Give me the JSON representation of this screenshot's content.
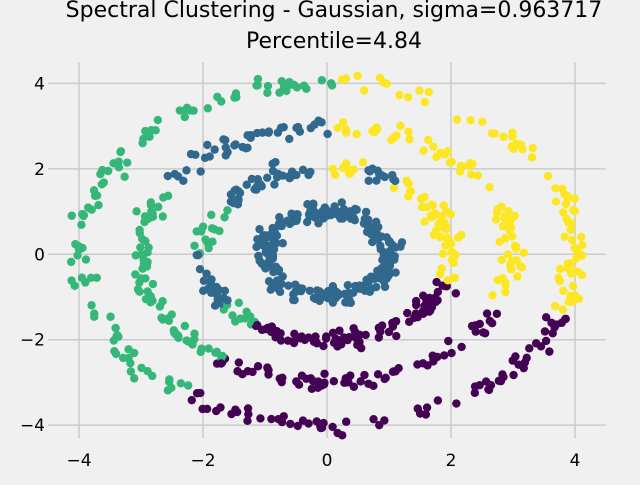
{
  "chart_data": {
    "type": "scatter",
    "title": "Spectral Clustering - Gaussian, sigma=0.963717",
    "subtitle": "Percentile=4.84",
    "xlabel": "",
    "ylabel": "",
    "xlim": [
      -4.5,
      4.5
    ],
    "ylim": [
      -4.3,
      4.5
    ],
    "xticks": [
      -4,
      -2,
      0,
      2,
      4
    ],
    "yticks": [
      -4,
      -2,
      0,
      2,
      4
    ],
    "xtick_labels": [
      "−4",
      "−2",
      "0",
      "2",
      "4"
    ],
    "ytick_labels": [
      "−4",
      "−2",
      "0",
      "2",
      "4"
    ],
    "grid": true,
    "legend": "none",
    "description": "1000 points on four noisy concentric rings (radii approx. 1, 2, 3, 4) colored by cluster",
    "rings": [
      {
        "radius": 1.0,
        "noise": 0.1,
        "points": 250
      },
      {
        "radius": 2.0,
        "noise": 0.1,
        "points": 250
      },
      {
        "radius": 3.0,
        "noise": 0.1,
        "points": 250
      },
      {
        "radius": 4.0,
        "noise": 0.1,
        "points": 250
      }
    ],
    "clusters": [
      {
        "id": 0,
        "color": "#440154",
        "region": "lower arcs of rings 2-4",
        "rule": "rings radius >= 2, angle from -125 deg to -20 deg"
      },
      {
        "id": 1,
        "color": "#31688e",
        "region": "inner ring and upper-left arcs of rings 2-3",
        "rule": "ring radius 1 (all), ring radius 2 angle 90 deg to 215 deg and 0.97 to 1.3 rad, ring radius 3 angle 88 deg to 145 deg"
      },
      {
        "id": 2,
        "color": "#35b779",
        "region": "left arcs of rings 2-4",
        "rule": "ring radius 2 angle 145-240 deg, ring radius 3 angle 145-235 deg, ring radius 4 angle 88-235 deg"
      },
      {
        "id": 3,
        "color": "#fde725",
        "region": "right arcs of rings 2-4",
        "rule": "rings radius >= 2, angle from -20 deg to 88 deg"
      }
    ]
  }
}
